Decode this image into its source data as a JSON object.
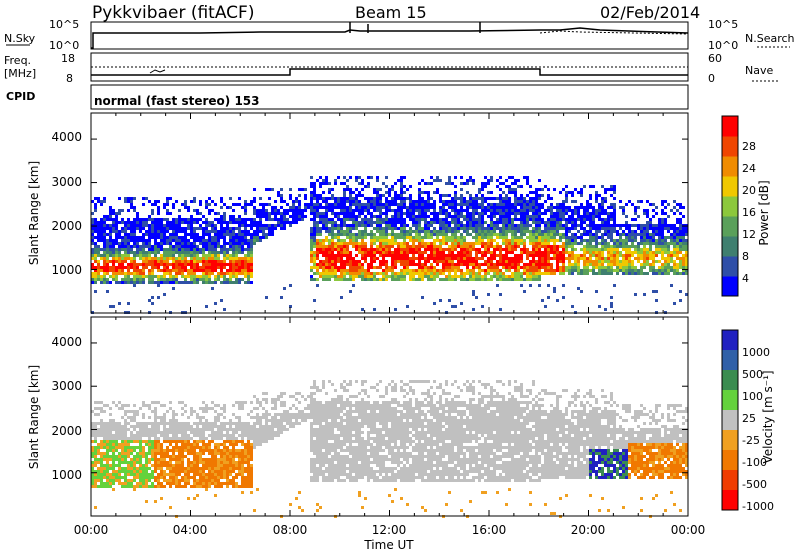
{
  "header": {
    "station": "Pykkvibaer (fitACF)",
    "beam": "Beam 15",
    "date": "02/Feb/2014"
  },
  "top_panels": {
    "nsky_label": "N.Sky",
    "nsky_ticks": [
      "10^5",
      "10^0"
    ],
    "nsearch_label": "N.Search",
    "nsearch_ticks": [
      "10^5",
      "10^0"
    ],
    "freq_label": "Freq.",
    "freq_unit": "[MHz]",
    "freq_ticks": [
      "18",
      "8"
    ],
    "nave_label": "Nave",
    "nave_ticks": [
      "60",
      "0"
    ],
    "cpid_label": "CPID",
    "cpid_text": "normal (fast stereo) 153"
  },
  "chart_data": [
    {
      "type": "heatmap",
      "name": "power",
      "ylabel": "Slant Range [km]",
      "yticks": [
        "4000",
        "3000",
        "2000",
        "1000"
      ],
      "ylim": [
        0,
        4600
      ],
      "colorbar_label": "Power [dB]",
      "colorbar_ticks": [
        "28",
        "24",
        "20",
        "16",
        "12",
        "8",
        "4"
      ],
      "colors": [
        "#0000ff",
        "#2f4fa8",
        "#3f7f6f",
        "#5aa05a",
        "#8cc83c",
        "#f0c800",
        "#f08c00",
        "#f04600",
        "#ff0000"
      ]
    },
    {
      "type": "heatmap",
      "name": "velocity",
      "ylabel": "Slant Range [km]",
      "yticks": [
        "4000",
        "3000",
        "2000",
        "1000"
      ],
      "ylim": [
        0,
        4600
      ],
      "colorbar_label": "Velocity [m s⁻¹]",
      "colorbar_ticks": [
        "1000",
        "500",
        "100",
        "25",
        "-25",
        "-100",
        "-500",
        "-1000"
      ],
      "colors": [
        "#2020c0",
        "#3060a8",
        "#3a8c50",
        "#64d23c",
        "#c0c0c0",
        "#f0a020",
        "#f07800",
        "#f03c00",
        "#ff0000"
      ]
    }
  ],
  "xaxis": {
    "label": "Time UT",
    "ticks": [
      "00:00",
      "04:00",
      "08:00",
      "12:00",
      "16:00",
      "20:00",
      "00:00"
    ]
  }
}
